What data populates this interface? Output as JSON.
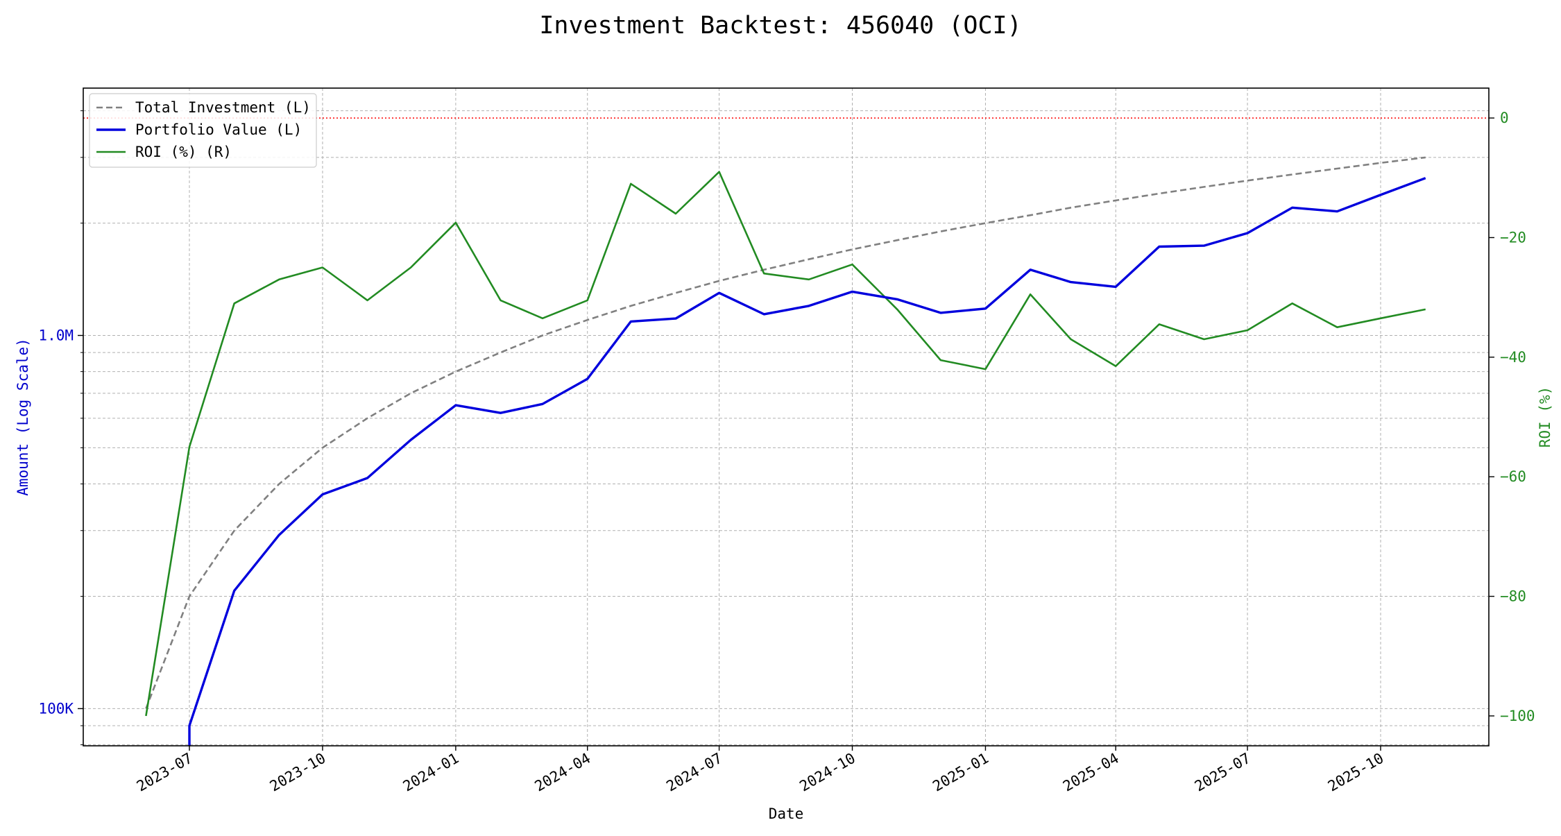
{
  "chart_data": {
    "type": "line",
    "title": "Investment Backtest: 456040 (OCI)",
    "xlabel": "Date",
    "ylabel_left": "Amount (Log Scale)",
    "ylabel_right": "ROI (%)",
    "left_scale": "log",
    "left_ylim": [
      79500,
      4600000
    ],
    "right_ylim": [
      -105,
      5
    ],
    "x_ticks": [
      "2023-07",
      "2023-10",
      "2024-01",
      "2024-04",
      "2024-07",
      "2024-10",
      "2025-01",
      "2025-04",
      "2025-07",
      "2025-10"
    ],
    "left_ticks": [
      {
        "value": 100000,
        "label": "100K"
      },
      {
        "value": 1000000,
        "label": "1.0M"
      }
    ],
    "right_ticks": [
      {
        "value": 0,
        "label": "0"
      },
      {
        "value": -20,
        "label": "−20"
      },
      {
        "value": -40,
        "label": "−40"
      },
      {
        "value": -60,
        "label": "−60"
      },
      {
        "value": -80,
        "label": "−80"
      },
      {
        "value": -100,
        "label": "−100"
      }
    ],
    "x": [
      "2023-06-01",
      "2023-07-01",
      "2023-08-01",
      "2023-09-01",
      "2023-10-01",
      "2023-11-01",
      "2023-12-01",
      "2024-01-01",
      "2024-02-01",
      "2024-03-01",
      "2024-04-01",
      "2024-05-01",
      "2024-06-01",
      "2024-07-01",
      "2024-08-01",
      "2024-09-01",
      "2024-10-01",
      "2024-11-01",
      "2024-12-01",
      "2025-01-01",
      "2025-02-01",
      "2025-03-01",
      "2025-04-01",
      "2025-05-01",
      "2025-06-01",
      "2025-07-01",
      "2025-08-01",
      "2025-09-01",
      "2025-10-01",
      "2025-11-01"
    ],
    "series": [
      {
        "name": "Total Investment (L)",
        "axis": "left",
        "color": "#808080",
        "style": "dashed",
        "values": [
          100000,
          200000,
          300000,
          400000,
          500000,
          600000,
          700000,
          800000,
          900000,
          1000000,
          1100000,
          1200000,
          1300000,
          1400000,
          1500000,
          1600000,
          1700000,
          1800000,
          1900000,
          2000000,
          2100000,
          2200000,
          2300000,
          2400000,
          2500000,
          2600000,
          2700000,
          2800000,
          2900000,
          3000000
        ]
      },
      {
        "name": "Portfolio Value (L)",
        "axis": "left",
        "color": "#0000dd",
        "style": "solid-thick",
        "values": [
          null,
          90000,
          207000,
          292000,
          375000,
          415000,
          525000,
          650000,
          620000,
          655000,
          765000,
          1090000,
          1110000,
          1300000,
          1140000,
          1200000,
          1310000,
          1250000,
          1150000,
          1180000,
          1500000,
          1390000,
          1350000,
          1730000,
          1740000,
          1880000,
          2200000,
          2150000,
          2380000,
          2640000
        ]
      },
      {
        "name": "ROI (%) (R)",
        "axis": "right",
        "color": "#228b22",
        "style": "solid",
        "values": [
          -100,
          -55,
          -31,
          -27,
          -25,
          -30.5,
          -25,
          -17.5,
          -30.5,
          -33.5,
          -30.5,
          -11,
          -16,
          -9,
          -26,
          -27,
          -24.5,
          -32,
          -40.5,
          -42,
          -29.5,
          -37,
          -41.5,
          -34.5,
          -37,
          -35.5,
          -31,
          -35,
          -33.5,
          -32
        ]
      }
    ],
    "reference_line": {
      "axis": "right",
      "value": 0,
      "color": "#ff0000",
      "style": "dotted"
    },
    "grid": true,
    "legend_position": "top-left"
  }
}
